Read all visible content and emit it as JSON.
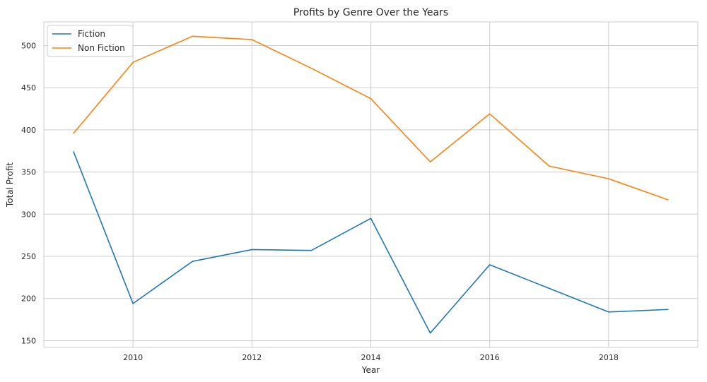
{
  "chart_data": {
    "type": "line",
    "title": "Profits by Genre Over the Years",
    "xlabel": "Year",
    "ylabel": "Total Profit",
    "x": [
      2009,
      2010,
      2011,
      2012,
      2013,
      2014,
      2015,
      2016,
      2017,
      2018,
      2019
    ],
    "series": [
      {
        "name": "Fiction",
        "color": "#1f77b4",
        "values": [
          374,
          194,
          244,
          258,
          257,
          295,
          159,
          240,
          212,
          184,
          187
        ]
      },
      {
        "name": "Non Fiction",
        "color": "#ff7f0e",
        "values": [
          396,
          480,
          511,
          507,
          473,
          437,
          362,
          419,
          357,
          342,
          317
        ]
      }
    ],
    "xlim": [
      2008.5,
      2019.5
    ],
    "ylim": [
      142,
      528
    ],
    "xticks": [
      2010,
      2012,
      2014,
      2016,
      2018
    ],
    "yticks": [
      150,
      200,
      250,
      300,
      350,
      400,
      450,
      500
    ],
    "grid": true,
    "legend_position": "top-left"
  }
}
